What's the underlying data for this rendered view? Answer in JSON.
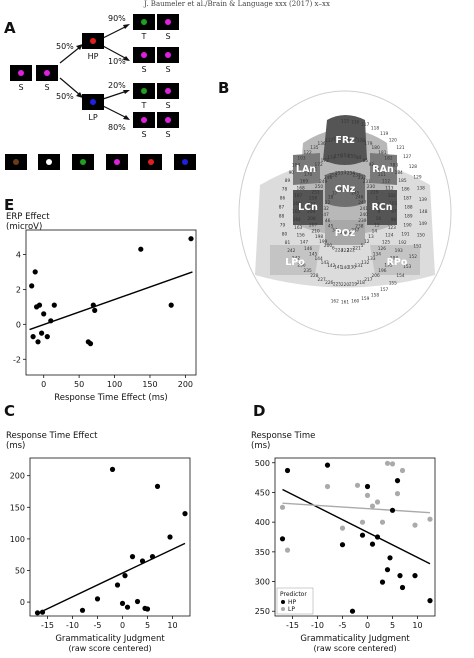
{
  "header": "J. Baumeler et al./Brain & Language xxx (2017) x–xx",
  "panels": {
    "A": "A",
    "B": "B",
    "C": "C",
    "D": "D",
    "E": "E"
  },
  "panel_a": {
    "initial_labels": [
      "S",
      "S"
    ],
    "branch_hp": {
      "pct": "50%",
      "label": "HP",
      "out_top_pct": "90%",
      "out_bottom_pct": "10%",
      "top_labels": [
        "T",
        "S"
      ],
      "bottom_labels": [
        "S",
        "S"
      ]
    },
    "branch_lp": {
      "pct": "50%",
      "label": "LP",
      "out_top_pct": "20%",
      "out_bottom_pct": "80%",
      "top_labels": [
        "T",
        "S"
      ],
      "bottom_labels": [
        "S",
        "S"
      ]
    },
    "colors": {
      "magenta": "#e020e0",
      "red": "#e02020",
      "blue": "#2020e0",
      "green": "#20a020",
      "white": "#ffffff",
      "brown": "#6b3a1a"
    },
    "legend_dots": [
      "#6b3a1a",
      "#ffffff",
      "#20a020",
      "#e020e0",
      "#e02020",
      "#2020e0"
    ]
  },
  "panel_b": {
    "regions": [
      "FRz",
      "LAn",
      "RAn",
      "CNz",
      "LCn",
      "RCn",
      "POz",
      "LPo",
      "RPo"
    ],
    "electrodes": [
      "243",
      "244",
      "245",
      "246",
      "247",
      "241",
      "240",
      "239",
      "238",
      "237",
      "2",
      "26",
      "33",
      "34",
      "45",
      "46",
      "47",
      "32",
      "22",
      "18",
      "17",
      "10",
      "3",
      "234",
      "233",
      "232",
      "231",
      "230",
      "229",
      "1",
      "8",
      "9",
      "16",
      "15",
      "14",
      "13",
      "12",
      "5",
      "221",
      "222",
      "223",
      "224",
      "6",
      "200",
      "199",
      "198",
      "210",
      "207",
      "208",
      "209",
      "197",
      "256",
      "251",
      "250",
      "249",
      "248",
      "252",
      "253",
      "254",
      "255",
      "84",
      "85",
      "92",
      "91",
      "111",
      "112",
      "113",
      "102",
      "101",
      "97",
      "98",
      "123",
      "124",
      "125",
      "126",
      "134",
      "133",
      "132",
      "131",
      "130",
      "140",
      "141",
      "142",
      "143",
      "144",
      "145",
      "146",
      "147",
      "156",
      "163",
      "164",
      "165",
      "166",
      "167",
      "168",
      "169",
      "170",
      "171",
      "172",
      "173",
      "174",
      "175",
      "176",
      "177",
      "178",
      "179",
      "180",
      "181",
      "182",
      "183",
      "184",
      "185",
      "186",
      "187",
      "188",
      "189",
      "190",
      "191",
      "192",
      "193",
      "194",
      "195",
      "196",
      "206",
      "217",
      "218",
      "219",
      "220",
      "225",
      "226",
      "227",
      "228",
      "235",
      "236",
      "242",
      "242",
      "81",
      "80",
      "79",
      "88",
      "87",
      "86",
      "78",
      "89",
      "90",
      "104",
      "103",
      "122",
      "135",
      "136",
      "137",
      "114",
      "115",
      "116",
      "117",
      "118",
      "119",
      "120",
      "121",
      "127",
      "128",
      "129",
      "138",
      "139",
      "148",
      "149",
      "150",
      "151",
      "152",
      "153",
      "154",
      "155",
      "157",
      "158",
      "159",
      "160",
      "161",
      "162"
    ]
  },
  "colors": {
    "accent": "#000000",
    "hp": "#000000",
    "lp": "#aaaaaa",
    "region_dark": "#6d6d6d",
    "region_mid": "#9a9a9a",
    "region_light": "#cfcfcf"
  },
  "chart_data": [
    {
      "id": "E",
      "type": "scatter",
      "title": "ERP Effect",
      "subtitle": "(microV)",
      "xlabel": "Response Time Effect (ms)",
      "ylabel": "",
      "xticks": [
        0,
        50,
        100,
        150,
        200
      ],
      "yticks": [
        -2,
        0,
        2,
        4
      ],
      "xlim": [
        -25,
        215
      ],
      "ylim": [
        -2.9,
        5.4
      ],
      "grid": false,
      "series": [
        {
          "x": [
            -17,
            -15,
            -12,
            -10,
            -8,
            -6,
            -3,
            0,
            5,
            10,
            15,
            63,
            66,
            70,
            72,
            137,
            180,
            208
          ],
          "y": [
            2.2,
            -0.7,
            3.0,
            1.0,
            -1.0,
            1.1,
            -0.5,
            0.6,
            -0.7,
            0.2,
            1.1,
            -1.0,
            -1.1,
            1.1,
            0.8,
            4.3,
            1.1,
            4.9
          ]
        }
      ],
      "fit_line": {
        "x": [
          -20,
          210
        ],
        "y": [
          -0.3,
          3.0
        ]
      }
    },
    {
      "id": "C",
      "type": "scatter",
      "title": "Response Time Effect",
      "subtitle": "(ms)",
      "xlabel": "Grammaticality Judgment",
      "xlabel2": "(raw score centered)",
      "xticks": [
        -15,
        -10,
        -5,
        0,
        5,
        10
      ],
      "yticks": [
        0,
        50,
        100,
        150,
        200
      ],
      "xlim": [
        -18.5,
        13.5
      ],
      "ylim": [
        -22,
        228
      ],
      "grid": false,
      "series": [
        {
          "x": [
            -17,
            -16,
            -8,
            -5,
            -2,
            -1,
            0,
            0.5,
            1,
            2,
            3,
            4,
            4.5,
            5,
            6,
            7,
            9.5,
            12.5
          ],
          "y": [
            -17,
            -16,
            -13,
            5,
            210,
            27,
            -2,
            42,
            -8,
            72,
            1,
            65,
            -10,
            -11,
            72,
            183,
            103,
            140
          ]
        }
      ],
      "fit_line": {
        "x": [
          -17,
          12.5
        ],
        "y": [
          -18,
          93
        ]
      }
    },
    {
      "id": "D",
      "type": "scatter",
      "title": "Response Time",
      "subtitle": "(ms)",
      "xlabel": "Grammaticality Judgment",
      "xlabel2": "(raw score centered)",
      "xticks": [
        -15,
        -10,
        -5,
        0,
        5,
        10
      ],
      "yticks": [
        250,
        300,
        350,
        400,
        450,
        500
      ],
      "xlim": [
        -18.5,
        13.5
      ],
      "ylim": [
        242,
        508
      ],
      "grid": false,
      "legend": {
        "title": "Predictor",
        "items": [
          "HP",
          "LP"
        ],
        "position": "bottom-left"
      },
      "series": [
        {
          "name": "HP",
          "color": "#000000",
          "x": [
            -17,
            -16,
            -8,
            -5,
            -3,
            -1,
            0,
            1,
            2,
            3,
            4,
            4.5,
            5,
            6,
            6.5,
            7,
            9.5,
            12.5
          ],
          "y": [
            372,
            487,
            496,
            362,
            250,
            378,
            460,
            363,
            375,
            299,
            320,
            340,
            420,
            470,
            310,
            290,
            310,
            268
          ]
        },
        {
          "name": "LP",
          "color": "#aaaaaa",
          "x": [
            -17,
            -16,
            -8,
            -5,
            -2,
            -1,
            0,
            1,
            2,
            3,
            4,
            5,
            6,
            7,
            9.5,
            12.5
          ],
          "y": [
            425,
            353,
            460,
            390,
            462,
            400,
            445,
            427,
            434,
            400,
            499,
            498,
            448,
            487,
            395,
            405
          ]
        }
      ],
      "fit_lines": [
        {
          "name": "HP",
          "color": "#000000",
          "x": [
            -17,
            12.5
          ],
          "y": [
            455,
            330
          ]
        },
        {
          "name": "LP",
          "color": "#aaaaaa",
          "x": [
            -17,
            12.5
          ],
          "y": [
            432,
            416
          ]
        }
      ]
    }
  ]
}
